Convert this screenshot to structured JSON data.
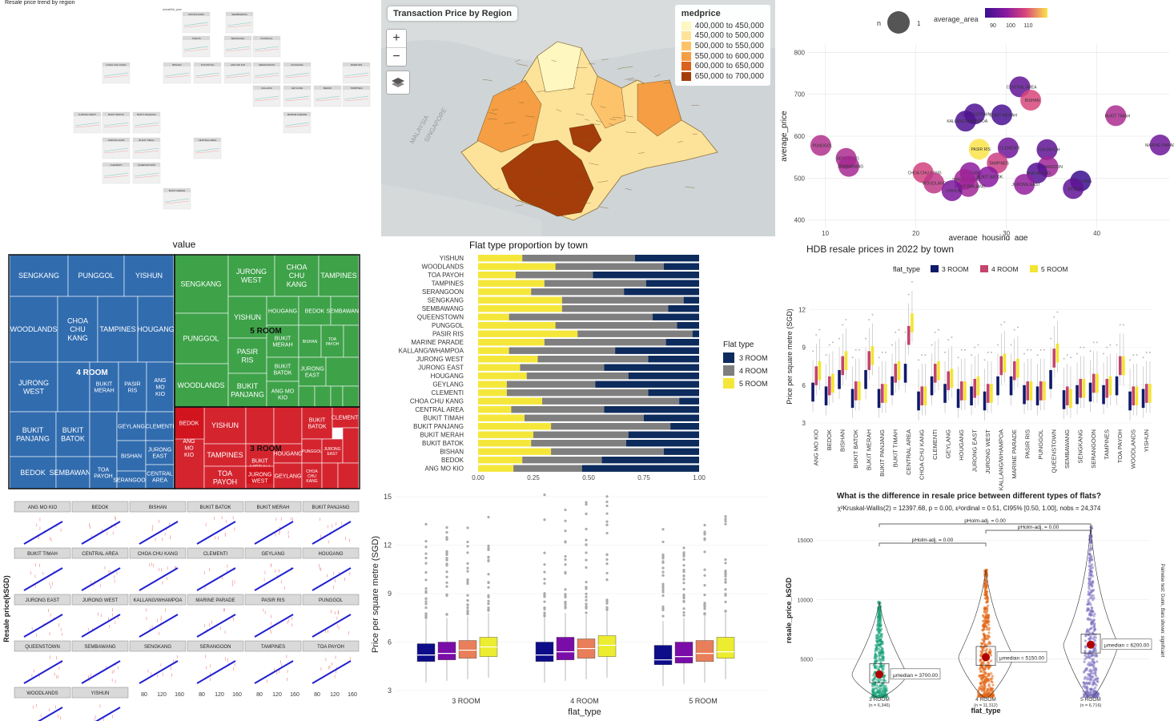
{
  "panels": {
    "trend": {
      "title": "Resale price trend by region",
      "legend_label": "actual/flat_year",
      "facets": [
        "WOODLANDS",
        "SEMBAWANG",
        "YISHUN",
        "SENGKANG",
        "PUNGGOL",
        "CHOA CHU KANG",
        "BISHAN",
        "TOA PAYOH",
        "ANG MO KIO",
        "SERANGOON",
        "HOUGANG",
        "PASIR RIS",
        "KALLANG",
        "GEYLANG",
        "BEDOK",
        "TAMPINES",
        "JURONG WEST",
        "BUKIT BATOK",
        "BUKIT PANJANG",
        "MARINE PARADE",
        "JURONG EAST",
        "BUKIT TIMAH",
        "CENTRAL AREA",
        "CLEMENTI",
        "QUEENSTOWN",
        "BUKIT MERAH"
      ]
    },
    "map": {
      "title": "Transaction Price by Region",
      "zoom_in": "+",
      "zoom_out": "−",
      "legend_title": "medprice",
      "legend": [
        {
          "label": "400,000 to 450,000",
          "color": "#fef7c0"
        },
        {
          "label": "450,000 to 500,000",
          "color": "#fde39a"
        },
        {
          "label": "500,000 to 550,000",
          "color": "#fdc36b"
        },
        {
          "label": "550,000 to 600,000",
          "color": "#f59e43"
        },
        {
          "label": "600,000 to 650,000",
          "color": "#d9621c"
        },
        {
          "label": "650,000 to 700,000",
          "color": "#a53d0a"
        }
      ],
      "water_labels": [
        "MALAYSIA",
        "SINGAPORE"
      ]
    },
    "bubble": {
      "legend_n_label": "n",
      "legend_n_value": "1",
      "legend_area_title": "average_area",
      "legend_area_ticks": [
        "90",
        "100",
        "110"
      ],
      "xlabel": "average_housing_age",
      "ylabel": "average_price",
      "xticks": [
        "10",
        "20",
        "30",
        "40"
      ],
      "yticks": [
        "400",
        "500",
        "600",
        "700",
        "800"
      ]
    },
    "treemap": {
      "title": "value",
      "group_labels": [
        "4 ROOM",
        "5 ROOM",
        "3 ROOM"
      ]
    },
    "proportion": {
      "title": "Flat type proportion by town",
      "legend_title": "Flat type",
      "xticks": [
        "0.00",
        "0.25",
        "0.50",
        "0.75",
        "1.00"
      ]
    },
    "boxplot_town": {
      "title": "HDB resale prices in 2022 by town",
      "legend_title": "flat_type",
      "ylabel": "Price per square metre (SGD)",
      "yticks": [
        "3",
        "6",
        "9",
        "12"
      ]
    },
    "regression": {
      "ylabel": "Resale price(kSGD)",
      "xticks": [
        "80",
        "120",
        "160"
      ],
      "facets": [
        "ANG MO KIO",
        "BEDOK",
        "BISHAN",
        "BUKIT BATOK",
        "BUKIT MERAH",
        "BUKIT PANJANG",
        "BUKIT TIMAH",
        "CENTRAL AREA",
        "CHOA CHU KANG",
        "CLEMENTI",
        "GEYLANG",
        "HOUGANG",
        "JURONG EAST",
        "JURONG WEST",
        "KALLANG/WHAMPOA",
        "MARINE PARADE",
        "PASIR RIS",
        "PUNGGOL",
        "QUEENSTOWN",
        "SEMBAWANG",
        "SENGKANG",
        "SERANGOON",
        "TAMPINES",
        "TOA PAYOH",
        "WOODLANDS",
        "YISHUN"
      ]
    },
    "boxplot_type": {
      "ylabel": "Price per square metre (SGD)",
      "xlabel": "flat_type",
      "yticks": [
        "3",
        "6",
        "9",
        "12",
        "15"
      ]
    },
    "violin": {
      "title": "What is the difference in resale price between different types of flats?",
      "subtitle": "χ²Kruskal-Wallis(2) = 12397.68, p = 0.00, ε²ordinal = 0.51, CI95% [0.50, 1.00], nobs = 24,374",
      "xlabel": "flat_type",
      "ylabel": "resale_price_kSGD",
      "yticks": [
        "5000",
        "10000",
        "15000"
      ],
      "side_note": "Pairwise test: Dunn, Bars shown: significant",
      "pairwise": [
        "pHolm-adj. = 0.00",
        "pHolm-adj. = 0.00",
        "pHolm-adj. = 0.00"
      ],
      "groups": [
        {
          "label": "3 ROOM",
          "n": "(n = 6,346)",
          "median": "μmedian = 3700.00"
        },
        {
          "label": "4 ROOM",
          "n": "(n = 11,312)",
          "median": "μmedian = 5150.00"
        },
        {
          "label": "5 ROOM",
          "n": "(n = 6,716)",
          "median": "μmedian = 6200.00"
        }
      ]
    }
  },
  "chart_data": [
    {
      "type": "scatter",
      "xlabel": "average_housing_age",
      "ylabel": "average_price",
      "xlim": [
        8,
        48
      ],
      "ylim": [
        380,
        820
      ],
      "points": [
        {
          "name": "CENTRAL AREA",
          "x": 31.5,
          "y": 718,
          "area": 86
        },
        {
          "name": "BISHAN",
          "x": 32.7,
          "y": 686,
          "area": 105
        },
        {
          "name": "QUEENSTOWN",
          "x": 26.5,
          "y": 653,
          "area": 83
        },
        {
          "name": "BUKIT MERAH",
          "x": 29.5,
          "y": 651,
          "area": 82
        },
        {
          "name": "KALLANG/WHAMPOA",
          "x": 25.5,
          "y": 636,
          "area": 83
        },
        {
          "name": "BUKIT TIMAH",
          "x": 42.1,
          "y": 649,
          "area": 98
        },
        {
          "name": "PUNGGOL",
          "x": 9.5,
          "y": 578,
          "area": 99
        },
        {
          "name": "MARINE PARADE",
          "x": 47.0,
          "y": 579,
          "area": 88
        },
        {
          "name": "PASIR RIS",
          "x": 27.0,
          "y": 569,
          "area": 118
        },
        {
          "name": "CLEMENTI",
          "x": 30.2,
          "y": 572,
          "area": 88
        },
        {
          "name": "TOA PAYOH",
          "x": 34.5,
          "y": 568,
          "area": 86
        },
        {
          "name": "SENGKANG",
          "x": 12.3,
          "y": 547,
          "area": 98
        },
        {
          "name": "TAMPINES",
          "x": 29.0,
          "y": 536,
          "area": 103
        },
        {
          "name": "SEMBAWANG",
          "x": 12.6,
          "y": 528,
          "area": 97
        },
        {
          "name": "SERANGOON",
          "x": 34.6,
          "y": 527,
          "area": 96
        },
        {
          "name": "ANG MO KIO",
          "x": 33.4,
          "y": 512,
          "area": 84
        },
        {
          "name": "CHOA CHU KANG",
          "x": 20.8,
          "y": 513,
          "area": 104
        },
        {
          "name": "HOUGANG",
          "x": 26.0,
          "y": 513,
          "area": 93
        },
        {
          "name": "BUKIT BATOK",
          "x": 28.0,
          "y": 503,
          "area": 92
        },
        {
          "name": "JURONG WEST",
          "x": 25.4,
          "y": 497,
          "area": 96
        },
        {
          "name": "GEYLANG",
          "x": 38.2,
          "y": 493,
          "area": 80
        },
        {
          "name": "JURONG EAST",
          "x": 32.0,
          "y": 485,
          "area": 94
        },
        {
          "name": "WOODLANDS",
          "x": 22.0,
          "y": 488,
          "area": 101
        },
        {
          "name": "BEDOK",
          "x": 37.4,
          "y": 475,
          "area": 86
        },
        {
          "name": "BUKIT PANJANG",
          "x": 25.8,
          "y": 480,
          "area": 96
        },
        {
          "name": "YISHUN",
          "x": 24.0,
          "y": 470,
          "area": 90
        }
      ]
    },
    {
      "type": "bar",
      "title": "Flat type proportion by town",
      "stacked": true,
      "categories": [
        "YISHUN",
        "WOODLANDS",
        "TOA PAYOH",
        "TAMPINES",
        "SERANGOON",
        "SENGKANG",
        "SEMBAWANG",
        "QUEENSTOWN",
        "PUNGGOL",
        "PASIR RIS",
        "MARINE PARADE",
        "KALLANG/WHAMPOA",
        "JURONG WEST",
        "JURONG EAST",
        "HOUGANG",
        "GEYLANG",
        "CLEMENTI",
        "CHOA CHU KANG",
        "CENTRAL AREA",
        "BUKIT TIMAH",
        "BUKIT PANJANG",
        "BUKIT MERAH",
        "BUKIT BATOK",
        "BISHAN",
        "BEDOK",
        "ANG MO KIO"
      ],
      "series": [
        {
          "name": "5 ROOM",
          "color": "#f5e73a",
          "values": [
            0.2,
            0.35,
            0.17,
            0.3,
            0.24,
            0.38,
            0.38,
            0.14,
            0.35,
            0.45,
            0.3,
            0.14,
            0.27,
            0.19,
            0.22,
            0.13,
            0.13,
            0.29,
            0.15,
            0.21,
            0.33,
            0.25,
            0.24,
            0.33,
            0.2,
            0.16
          ]
        },
        {
          "name": "4 ROOM",
          "color": "#7f7f7f",
          "values": [
            0.51,
            0.49,
            0.35,
            0.46,
            0.42,
            0.55,
            0.48,
            0.65,
            0.55,
            0.52,
            0.55,
            0.48,
            0.5,
            0.38,
            0.46,
            0.4,
            0.64,
            0.62,
            0.42,
            0.54,
            0.54,
            0.43,
            0.43,
            0.51,
            0.36,
            0.31
          ]
        },
        {
          "name": "3 ROOM",
          "color": "#0d2b5c",
          "values": [
            0.29,
            0.16,
            0.48,
            0.24,
            0.34,
            0.07,
            0.14,
            0.21,
            0.1,
            0.03,
            0.15,
            0.38,
            0.23,
            0.43,
            0.32,
            0.47,
            0.23,
            0.09,
            0.43,
            0.25,
            0.13,
            0.32,
            0.33,
            0.16,
            0.44,
            0.53
          ]
        }
      ],
      "xlim": [
        0,
        1
      ]
    },
    {
      "type": "bar",
      "title": "HDB resale prices in 2022 by town",
      "ylabel": "Price per square metre (SGD)",
      "ylim": [
        3,
        14
      ],
      "categories": [
        "ANG MO KIO",
        "BEDOK",
        "BISHAN",
        "BUKIT BATOK",
        "BUKIT MERAH",
        "BUKIT PANJANG",
        "BUKIT TIMAH",
        "CENTRAL AREA",
        "CHOA CHU KANG",
        "CLEMENTI",
        "GEYLANG",
        "HOUGANG",
        "JURONG EAST",
        "JURONG WEST",
        "KALLANG/WHAMPOA",
        "MARINE PARADE",
        "PASIR RIS",
        "PUNGGOL",
        "QUEENSTOWN",
        "SEMBAWANG",
        "SENGKANG",
        "SERANGOON",
        "TAMPINES",
        "TOA PAYOH",
        "WOODLANDS",
        "YISHUN"
      ],
      "series": [
        {
          "name": "3 ROOM",
          "color": "#101a6b",
          "values": [
            5.5,
            5.2,
            6.5,
            5.0,
            6.5,
            5.0,
            6.0,
            7.0,
            4.8,
            6.0,
            5.4,
            5.0,
            5.2,
            4.8,
            6.0,
            6.0,
            5.3,
            5.2,
            6.5,
            4.9,
            5.3,
            5.5,
            5.3,
            6.0,
            4.8,
            5.0
          ]
        },
        {
          "name": "4 ROOM",
          "color": "#c4456e",
          "values": [
            6.8,
            6.0,
            7.6,
            5.6,
            8.0,
            5.4,
            7.0,
            10.0,
            5.2,
            7.0,
            6.4,
            5.6,
            5.8,
            5.4,
            7.6,
            7.2,
            5.6,
            5.6,
            8.2,
            5.2,
            5.8,
            6.2,
            5.8,
            7.6,
            5.2,
            5.4
          ]
        },
        {
          "name": "5 ROOM",
          "color": "#f2e533",
          "values": [
            7.2,
            6.2,
            8.0,
            5.6,
            8.4,
            5.4,
            7.2,
            11.0,
            5.2,
            7.2,
            6.6,
            5.6,
            6.0,
            5.4,
            7.8,
            7.4,
            5.6,
            5.6,
            8.6,
            5.0,
            5.8,
            6.2,
            6.0,
            7.6,
            5.2,
            5.4
          ]
        }
      ]
    },
    {
      "type": "bar",
      "ylabel": "Price per square metre (SGD)",
      "xlabel": "flat_type",
      "ylim": [
        3,
        15
      ],
      "categories": [
        "3 ROOM",
        "4 ROOM",
        "5 ROOM"
      ],
      "series": [
        {
          "name": "q1",
          "values": [
            [
              4.8,
              4.9,
              5.0,
              5.1
            ],
            [
              4.8,
              4.9,
              5.0,
              5.1
            ],
            [
              4.6,
              4.7,
              4.8,
              5.0
            ]
          ]
        },
        {
          "name": "median",
          "values": [
            [
              5.2,
              5.3,
              5.5,
              5.7
            ],
            [
              5.2,
              5.4,
              5.6,
              5.8
            ],
            [
              4.9,
              5.1,
              5.3,
              5.4
            ]
          ]
        },
        {
          "name": "q3",
          "values": [
            [
              5.9,
              6.0,
              6.1,
              6.3
            ],
            [
              6.0,
              6.3,
              6.2,
              6.4
            ],
            [
              5.8,
              6.0,
              6.1,
              6.3
            ]
          ]
        }
      ]
    },
    {
      "type": "scatter",
      "title": "What is the difference in resale price between different types of flats?",
      "xlabel": "flat_type",
      "ylabel": "resale_price_kSGD",
      "ylim": [
        2000,
        16500
      ],
      "categories": [
        "3 ROOM",
        "4 ROOM",
        "5 ROOM"
      ],
      "medians": [
        3700,
        5150,
        6200
      ],
      "n": [
        6346,
        11312,
        6716
      ]
    }
  ]
}
